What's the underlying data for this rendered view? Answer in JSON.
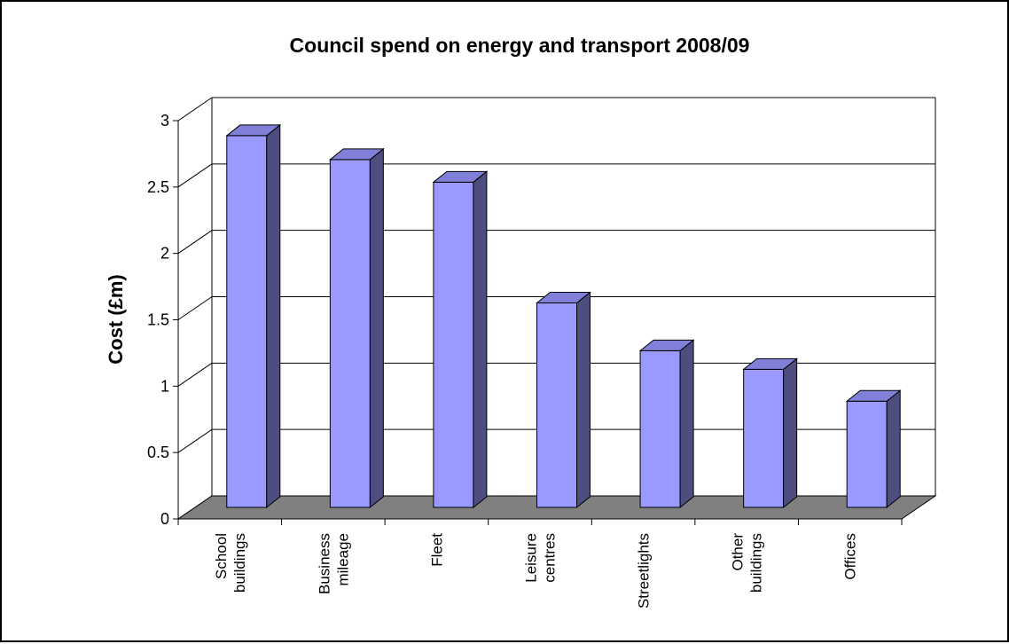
{
  "chart_data": {
    "type": "bar",
    "style": "3d-column",
    "title": "Council spend on energy and transport 2008/09",
    "xlabel": "",
    "ylabel": "Cost (£m)",
    "ylim": [
      0,
      3
    ],
    "yticks": [
      "0",
      "0.5",
      "1",
      "1.5",
      "2",
      "2.5",
      "3"
    ],
    "grid": true,
    "legend": "none",
    "categories": [
      [
        "School",
        "buildings"
      ],
      [
        "Business",
        "mileage"
      ],
      [
        "Fleet"
      ],
      [
        "Leisure",
        "centres"
      ],
      [
        "Streetlights"
      ],
      [
        "Other",
        "buildings"
      ],
      [
        "Offices"
      ]
    ],
    "values": [
      2.8,
      2.62,
      2.45,
      1.54,
      1.18,
      1.04,
      0.8
    ],
    "colors": {
      "bar_front": "#9999ff",
      "bar_side": "#4d4d7f",
      "bar_top": "#8080d8",
      "floor": "#808080",
      "gridline": "#000000"
    }
  }
}
